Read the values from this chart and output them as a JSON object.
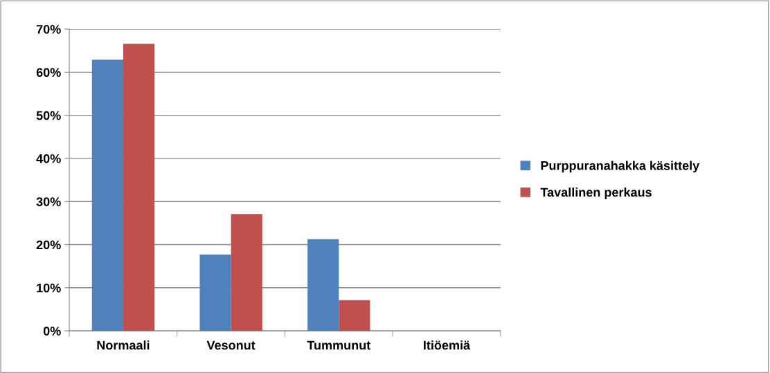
{
  "chart_data": {
    "type": "bar",
    "categories": [
      "Normaali",
      "Vesonut",
      "Tummunut",
      "Itiöemiä"
    ],
    "series": [
      {
        "name": "Purppuranahakka käsittely",
        "color": "#4f81bd",
        "values": [
          0.629,
          0.177,
          0.213,
          0
        ]
      },
      {
        "name": "Tavallinen perkaus",
        "color": "#c0504d",
        "values": [
          0.666,
          0.271,
          0.071,
          0
        ]
      }
    ],
    "ylim": [
      0,
      0.7
    ],
    "yticks": [
      {
        "value": 0,
        "label": "0%"
      },
      {
        "value": 0.1,
        "label": "10%"
      },
      {
        "value": 0.2,
        "label": "20%"
      },
      {
        "value": 0.3,
        "label": "30%"
      },
      {
        "value": 0.4,
        "label": "40%"
      },
      {
        "value": 0.5,
        "label": "50%"
      },
      {
        "value": 0.6,
        "label": "60%"
      },
      {
        "value": 0.7,
        "label": "70%"
      }
    ],
    "grid": "y",
    "legend": "right"
  }
}
